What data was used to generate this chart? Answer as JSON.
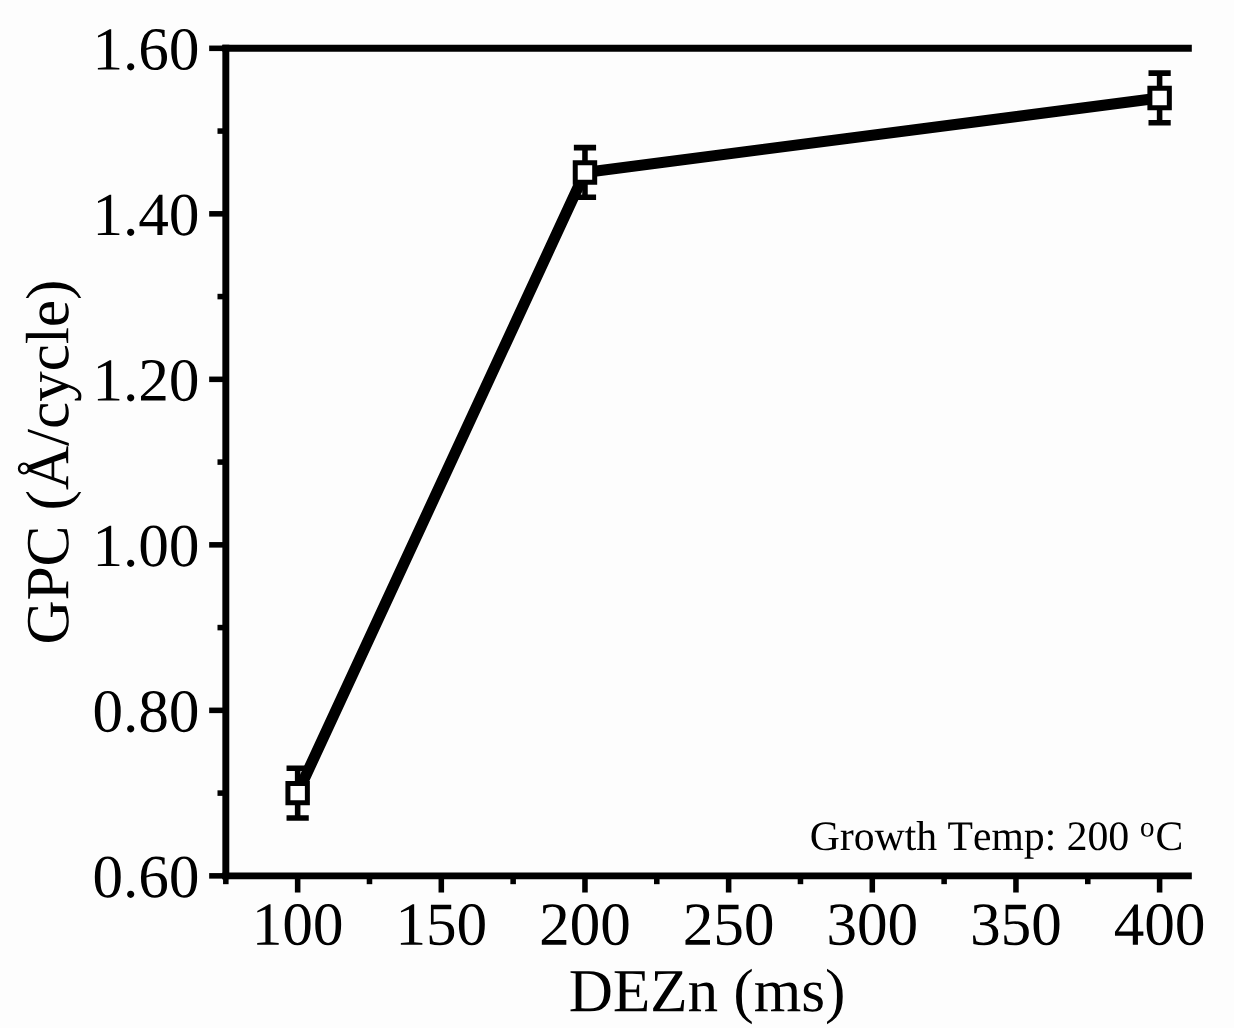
{
  "chart_data": {
    "type": "line",
    "xlabel": "DEZn (ms)",
    "ylabel": "GPC (Å/cycle)",
    "x": [
      100,
      200,
      400
    ],
    "series": [
      {
        "color": "#000000",
        "values": [
          0.7,
          1.45,
          1.54
        ],
        "errors": [
          0.03,
          0.03,
          0.03
        ]
      }
    ],
    "xlim": [
      75,
      410
    ],
    "xticks": [
      100,
      150,
      200,
      250,
      300,
      350,
      400
    ],
    "ylim": [
      0.6,
      1.6
    ],
    "yticks": [
      {
        "value": 0.6,
        "label": "0.60"
      },
      {
        "value": 0.8,
        "label": "0.80"
      },
      {
        "value": 1.0,
        "label": "1.00"
      },
      {
        "value": 1.2,
        "label": "1.20"
      },
      {
        "value": 1.4,
        "label": "1.40"
      },
      {
        "value": 1.6,
        "label": "1.60"
      }
    ],
    "marker": "square",
    "line_style": "solid",
    "grid": false,
    "legend": false,
    "annotations": [
      "Growth Temp: 200 $^{o}$C"
    ]
  }
}
